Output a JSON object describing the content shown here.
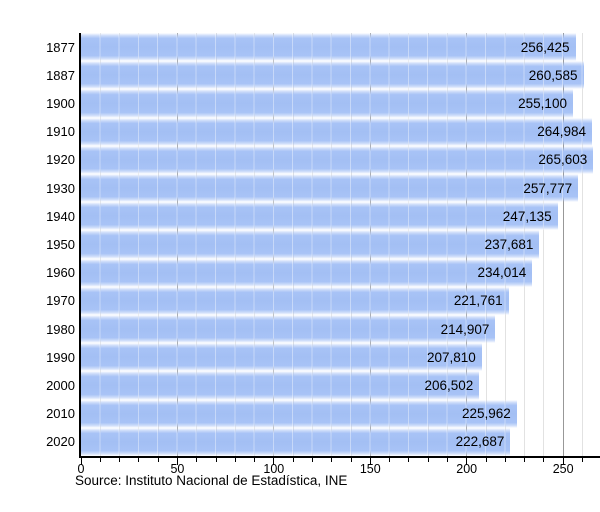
{
  "chart_data": {
    "type": "bar",
    "orientation": "horizontal",
    "title": "",
    "xlabel": "",
    "ylabel": "",
    "categories": [
      "1877",
      "1887",
      "1900",
      "1910",
      "1920",
      "1930",
      "1940",
      "1950",
      "1960",
      "1970",
      "1980",
      "1990",
      "2000",
      "2010",
      "2020"
    ],
    "values": [
      256425,
      260585,
      255100,
      264984,
      265603,
      257777,
      247135,
      237681,
      234014,
      221761,
      214907,
      207810,
      206502,
      225962,
      222687
    ],
    "value_labels": [
      "256,425",
      "260,585",
      "255,100",
      "264,984",
      "265,603",
      "257,777",
      "247,135",
      "237,681",
      "234,014",
      "221,761",
      "214,907",
      "207,810",
      "206,502",
      "225,962",
      "222,687"
    ],
    "x_tick_labels": [
      "0",
      "50",
      "100",
      "150",
      "200",
      "250"
    ],
    "x_ticks": [
      0,
      50,
      100,
      150,
      200,
      250
    ],
    "xlim": [
      0,
      280
    ],
    "grid": "vertical; minor every 10, major every 50",
    "legend": "none",
    "bar_value_label_position": "inside-right"
  },
  "footer": {
    "source": "Source: Instituto Nacional de Estadística, INE"
  },
  "colors": {
    "bar": "#a3bff4",
    "bar_edge_fade": "#c3d5f9",
    "grid_minor": "#e2e2e2",
    "grid_major": "#989898",
    "axis": "#000000",
    "text": "#000000",
    "background": "#ffffff"
  }
}
